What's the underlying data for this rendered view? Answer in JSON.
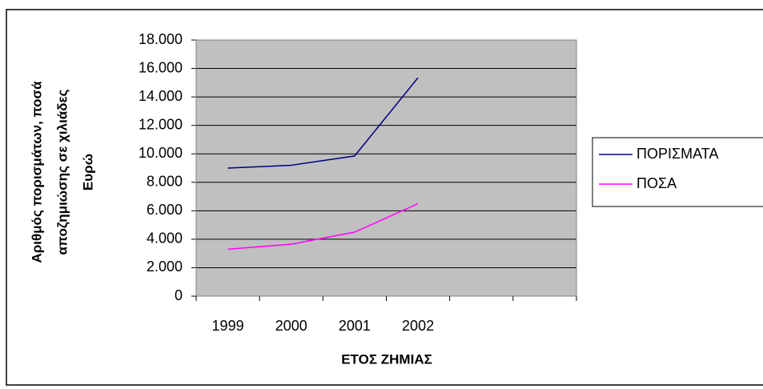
{
  "chart_data": {
    "type": "line",
    "ylabel": [
      "Αριθμός πορισμάτων, ποσά",
      "αποζημιώσης σε χιλιάδες",
      "Ευρώ"
    ],
    "xlabel": "ΕΤΟΣ ΖΗΜΙΑΣ",
    "categories": [
      "1999",
      "2000",
      "2001",
      "2002",
      null,
      null
    ],
    "series": [
      {
        "name": "ΠΟΡΙΣΜΑΤΑ",
        "color": "#000080",
        "values": [
          9000,
          9200,
          9850,
          15350,
          null,
          null
        ]
      },
      {
        "name": "ΠΟΣΑ",
        "color": "#ff00ff",
        "values": [
          3300,
          3650,
          4500,
          6500,
          null,
          null
        ]
      }
    ],
    "ylim": [
      0,
      18000
    ],
    "yticks": [
      0,
      {
        "value": 2000,
        "label": "2.000"
      },
      {
        "value": 4000,
        "label": "4.000"
      },
      {
        "value": 6000,
        "label": "6.000"
      },
      {
        "value": 8000,
        "label": "8.000"
      },
      {
        "value": 10000,
        "label": "10.000"
      },
      {
        "value": 12000,
        "label": "12.000"
      },
      {
        "value": 14000,
        "label": "14.000"
      },
      {
        "value": 16000,
        "label": "16.000"
      },
      {
        "value": 18000,
        "label": "18.000"
      }
    ],
    "grid": true,
    "legend": "right",
    "plot_background": "#c0c0c0"
  }
}
